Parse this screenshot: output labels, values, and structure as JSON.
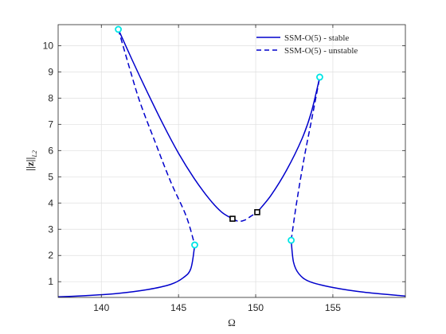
{
  "chart_data": {
    "type": "line",
    "xlabel": "Ω",
    "ylabel": "||z||",
    "ylabel_subscript": "L2",
    "xlim": [
      137.2,
      159.7
    ],
    "ylim": [
      0.4,
      10.8
    ],
    "xticks": [
      140,
      145,
      150,
      155
    ],
    "yticks": [
      1,
      2,
      3,
      4,
      5,
      6,
      7,
      8,
      9,
      10
    ],
    "grid": true,
    "legend_position": "top-right",
    "colors": {
      "series": "#0000cc",
      "fold_marker": "#00e5e5",
      "bifurcation_marker": "#000000",
      "grid": "#dfdfdf",
      "axis": "#262626"
    },
    "series": [
      {
        "name": "SSM-O(5) - stable",
        "style": "solid",
        "segments": [
          [
            [
              137.2,
              0.42
            ],
            [
              139,
              0.47
            ],
            [
              141,
              0.55
            ],
            [
              143,
              0.7
            ],
            [
              144.5,
              0.9
            ],
            [
              145.3,
              1.15
            ],
            [
              145.8,
              1.5
            ],
            [
              146.05,
              2.4
            ]
          ],
          [
            [
              141.1,
              10.62
            ],
            [
              142,
              9.45
            ],
            [
              143,
              8.2
            ],
            [
              144,
              7.0
            ],
            [
              145,
              5.9
            ],
            [
              146,
              4.95
            ],
            [
              147,
              4.15
            ],
            [
              147.8,
              3.65
            ],
            [
              148.5,
              3.4
            ]
          ],
          [
            [
              150.1,
              3.65
            ],
            [
              151,
              4.3
            ],
            [
              152,
              5.25
            ],
            [
              153,
              6.45
            ],
            [
              153.6,
              7.45
            ],
            [
              154.15,
              8.8
            ]
          ],
          [
            [
              152.3,
              2.58
            ],
            [
              152.45,
              1.75
            ],
            [
              152.8,
              1.3
            ],
            [
              153.5,
              1.0
            ],
            [
              155,
              0.78
            ],
            [
              157,
              0.6
            ],
            [
              159.7,
              0.45
            ]
          ]
        ]
      },
      {
        "name": "SSM-O(5) - unstable",
        "style": "dashed",
        "segments": [
          [
            [
              141.1,
              10.62
            ],
            [
              141.8,
              9.2
            ],
            [
              142.5,
              7.85
            ],
            [
              143.5,
              6.3
            ],
            [
              144.5,
              4.8
            ],
            [
              145.5,
              3.5
            ],
            [
              146.05,
              2.4
            ]
          ],
          [
            [
              148.5,
              3.4
            ],
            [
              148.9,
              3.3
            ],
            [
              149.3,
              3.35
            ],
            [
              149.7,
              3.5
            ],
            [
              150.1,
              3.65
            ]
          ],
          [
            [
              152.3,
              2.58
            ],
            [
              152.7,
              4.2
            ],
            [
              153.2,
              5.9
            ],
            [
              153.7,
              7.4
            ],
            [
              154.15,
              8.8
            ]
          ]
        ]
      }
    ],
    "markers": {
      "folds": [
        [
          141.1,
          10.62
        ],
        [
          146.05,
          2.4
        ],
        [
          152.3,
          2.58
        ],
        [
          154.15,
          8.8
        ]
      ],
      "bifurcations": [
        [
          148.5,
          3.4
        ],
        [
          150.1,
          3.65
        ]
      ]
    }
  }
}
